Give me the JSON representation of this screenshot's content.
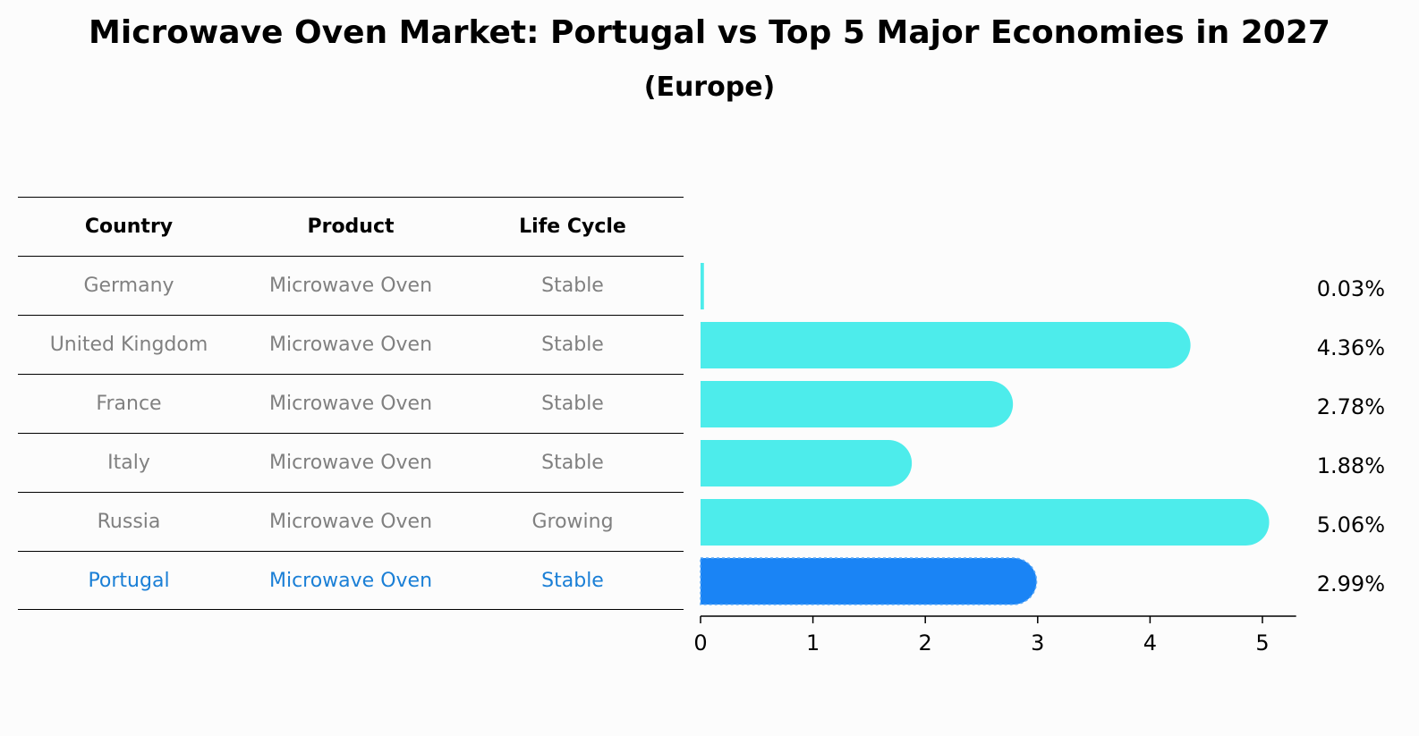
{
  "title": "Microwave Oven Market: Portugal vs Top 5 Major Economies in 2027",
  "subtitle": "(Europe)",
  "table": {
    "headers": [
      "Country",
      "Product",
      "Life Cycle"
    ],
    "rows": [
      {
        "country": "Germany",
        "product": "Microwave Oven",
        "life_cycle": "Stable"
      },
      {
        "country": "United Kingdom",
        "product": "Microwave Oven",
        "life_cycle": "Stable"
      },
      {
        "country": "France",
        "product": "Microwave Oven",
        "life_cycle": "Stable"
      },
      {
        "country": "Italy",
        "product": "Microwave Oven",
        "life_cycle": "Stable"
      },
      {
        "country": "Russia",
        "product": "Microwave Oven",
        "life_cycle": "Growing"
      },
      {
        "country": "Portugal",
        "product": "Microwave Oven",
        "life_cycle": "Stable"
      }
    ]
  },
  "colors": {
    "bar": "#4deceb",
    "highlight_bar": "#1a84f5",
    "highlight_text": "#1a7fd6",
    "muted_text": "#808080"
  },
  "chart_data": {
    "type": "bar",
    "orientation": "horizontal",
    "categories": [
      "Germany",
      "United Kingdom",
      "France",
      "Italy",
      "Russia",
      "Portugal"
    ],
    "values": [
      0.03,
      4.36,
      2.78,
      1.88,
      5.06,
      2.99
    ],
    "value_labels": [
      "0.03%",
      "4.36%",
      "2.78%",
      "1.88%",
      "5.06%",
      "2.99%"
    ],
    "highlight": "Portugal",
    "xlim": [
      0,
      5.3
    ],
    "xticks": [
      0,
      1,
      2,
      3,
      4,
      5
    ],
    "xlabel": "",
    "ylabel": "",
    "grid": false
  }
}
